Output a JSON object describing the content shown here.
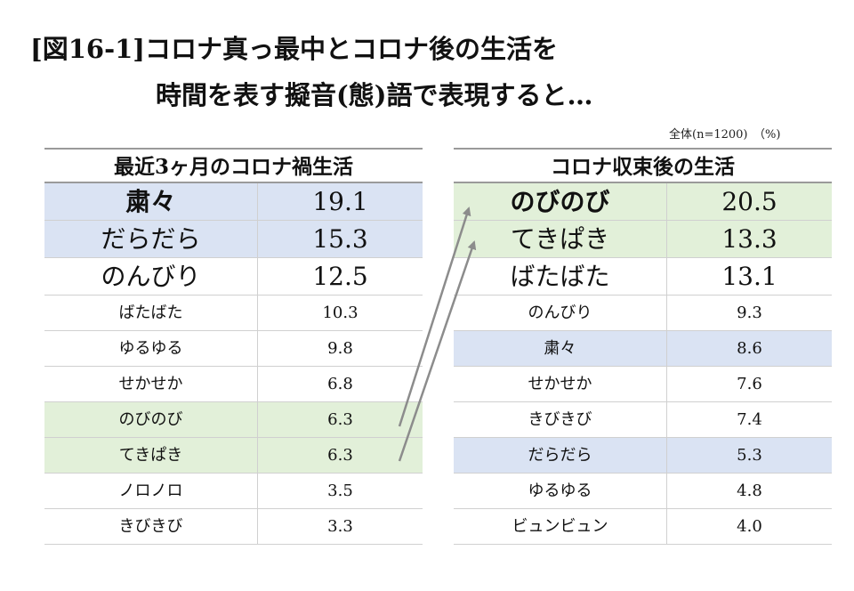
{
  "title": {
    "line1": "[図16-1]コロナ真っ最中とコロナ後の生活を",
    "line2": "時間を表す擬音(態)語で表現すると…"
  },
  "note": "全体(n=1200)　（%)",
  "colors": {
    "blue_highlight": "#dae3f3",
    "green_highlight": "#e2f0d9",
    "arrow": "#8c8c8c"
  },
  "chart_data": [
    {
      "type": "table",
      "title": "最近3ヶ月のコロナ禍生活",
      "rows": [
        {
          "label": "粛々",
          "value": "19.1",
          "highlight": "blue",
          "size": "big",
          "bold": true
        },
        {
          "label": "だらだら",
          "value": "15.3",
          "highlight": "blue",
          "size": "big",
          "bold": false
        },
        {
          "label": "のんびり",
          "value": "12.5",
          "highlight": "none",
          "size": "big",
          "bold": false
        },
        {
          "label": "ばたばた",
          "value": "10.3",
          "highlight": "none",
          "size": "small",
          "bold": false
        },
        {
          "label": "ゆるゆる",
          "value": "9.8",
          "highlight": "none",
          "size": "small",
          "bold": false
        },
        {
          "label": "せかせか",
          "value": "6.8",
          "highlight": "none",
          "size": "small",
          "bold": false
        },
        {
          "label": "のびのび",
          "value": "6.3",
          "highlight": "green",
          "size": "small",
          "bold": false
        },
        {
          "label": "てきぱき",
          "value": "6.3",
          "highlight": "green",
          "size": "small",
          "bold": false
        },
        {
          "label": "ノロノロ",
          "value": "3.5",
          "highlight": "none",
          "size": "small",
          "bold": false
        },
        {
          "label": "きびきび",
          "value": "3.3",
          "highlight": "none",
          "size": "small",
          "bold": false
        }
      ]
    },
    {
      "type": "table",
      "title": "コロナ収束後の生活",
      "rows": [
        {
          "label": "のびのび",
          "value": "20.5",
          "highlight": "green",
          "size": "big",
          "bold": true
        },
        {
          "label": "てきぱき",
          "value": "13.3",
          "highlight": "green",
          "size": "big",
          "bold": false
        },
        {
          "label": "ばたばた",
          "value": "13.1",
          "highlight": "none",
          "size": "big",
          "bold": false
        },
        {
          "label": "のんびり",
          "value": "9.3",
          "highlight": "none",
          "size": "small",
          "bold": false
        },
        {
          "label": "粛々",
          "value": "8.6",
          "highlight": "blue",
          "size": "small",
          "bold": false
        },
        {
          "label": "せかせか",
          "value": "7.6",
          "highlight": "none",
          "size": "small",
          "bold": false
        },
        {
          "label": "きびきび",
          "value": "7.4",
          "highlight": "none",
          "size": "small",
          "bold": false
        },
        {
          "label": "だらだら",
          "value": "5.3",
          "highlight": "blue",
          "size": "small",
          "bold": false
        },
        {
          "label": "ゆるゆる",
          "value": "4.8",
          "highlight": "none",
          "size": "small",
          "bold": false
        },
        {
          "label": "ビュンビュン",
          "value": "4.0",
          "highlight": "none",
          "size": "small",
          "bold": false
        }
      ]
    }
  ]
}
